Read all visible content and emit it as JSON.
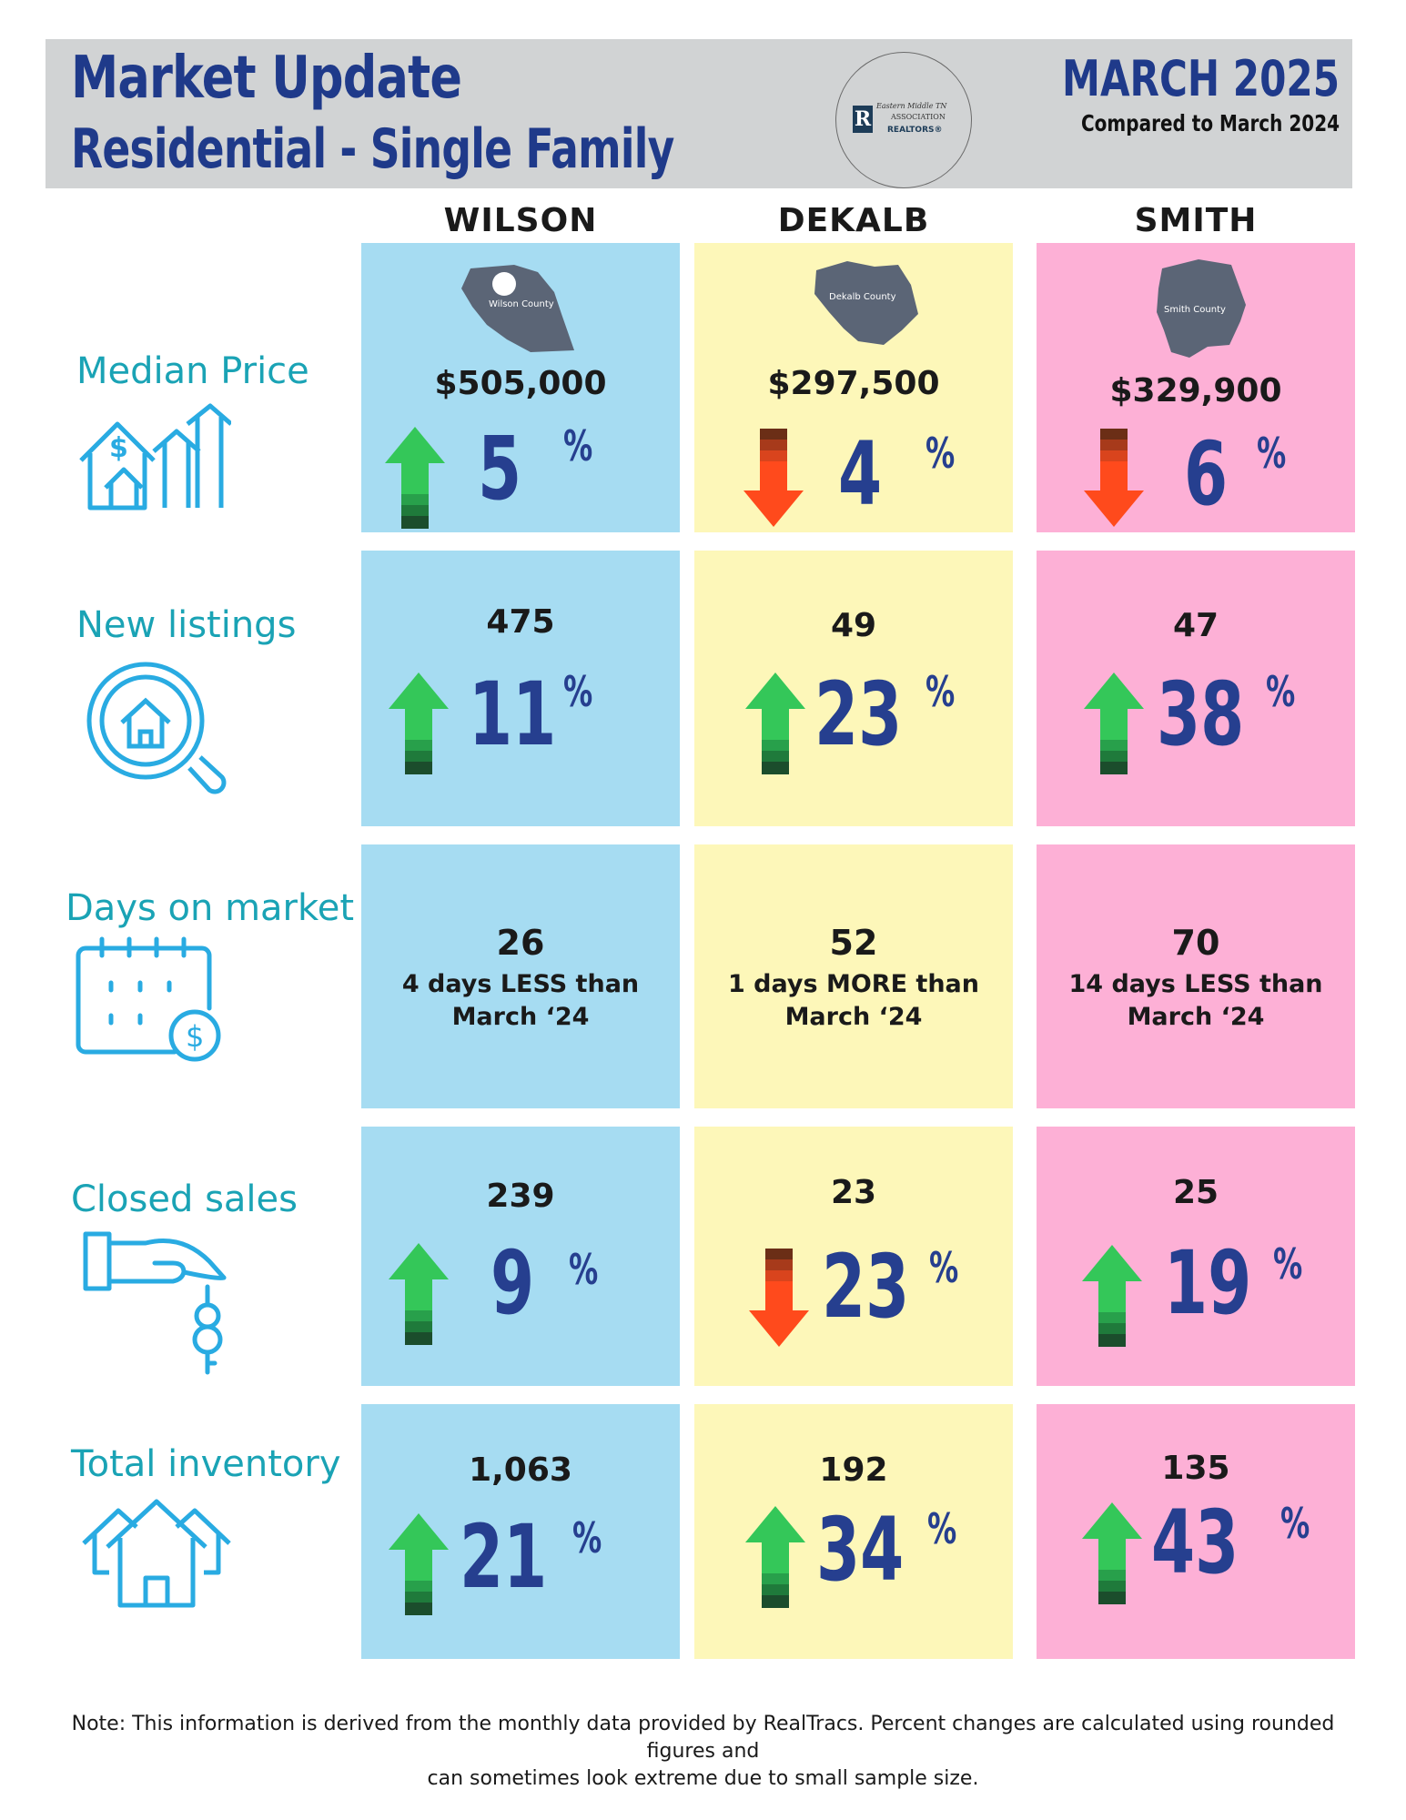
{
  "header": {
    "title": "Market Update",
    "subtitle": "Residential - Single Family",
    "month": "MARCH 2025",
    "compared": "Compared to March 2024",
    "logo": {
      "text1": "Eastern Middle TN",
      "text2": "ASSOCIATION",
      "text3": "REALTORS®"
    }
  },
  "counties": [
    {
      "name": "WILSON",
      "map_label": "Wilson County",
      "color": "#a6dcf2"
    },
    {
      "name": "DEKALB",
      "map_label": "Dekalb County",
      "color": "#fdf7b9"
    },
    {
      "name": "SMITH",
      "map_label": "Smith County",
      "color": "#fdb0d6"
    }
  ],
  "metrics": {
    "median_price": {
      "label": "Median Price",
      "icon": "house-price-growth-icon",
      "values": [
        {
          "value": "$505,000",
          "change": "5",
          "direction": "up"
        },
        {
          "value": "$297,500",
          "change": "4",
          "direction": "down"
        },
        {
          "value": "$329,900",
          "change": "6",
          "direction": "down"
        }
      ]
    },
    "new_listings": {
      "label": "New listings",
      "icon": "house-search-icon",
      "values": [
        {
          "value": "475",
          "change": "11",
          "direction": "up"
        },
        {
          "value": "49",
          "change": "23",
          "direction": "up"
        },
        {
          "value": "47",
          "change": "38",
          "direction": "up"
        }
      ]
    },
    "days_on_market": {
      "label": "Days on market",
      "icon": "calendar-dollar-icon",
      "values": [
        {
          "value": "26",
          "line1": "4 days LESS than",
          "line2": "March ‘24"
        },
        {
          "value": "52",
          "line1": "1 days MORE than",
          "line2": "March ‘24"
        },
        {
          "value": "70",
          "line1": "14 days LESS than",
          "line2": "March ‘24"
        }
      ]
    },
    "closed_sales": {
      "label": "Closed sales",
      "icon": "hand-key-icon",
      "values": [
        {
          "value": "239",
          "change": "9",
          "direction": "up"
        },
        {
          "value": "23",
          "change": "23",
          "direction": "down"
        },
        {
          "value": "25",
          "change": "19",
          "direction": "up"
        }
      ]
    },
    "total_inventory": {
      "label": "Total inventory",
      "icon": "houses-icon",
      "values": [
        {
          "value": "1,063",
          "change": "21",
          "direction": "up"
        },
        {
          "value": "192",
          "change": "34",
          "direction": "up"
        },
        {
          "value": "135",
          "change": "43",
          "direction": "up"
        }
      ]
    }
  },
  "percent_sign": "%",
  "footer": {
    "line1": "Note: This information is derived from the monthly data provided by RealTracs. Percent changes are calculated using rounded figures and",
    "line2": "can sometimes look extreme due to small sample size."
  },
  "colors": {
    "title": "#1f3a8a",
    "label": "#1aa3b5",
    "up_arrow": "#34c759",
    "down_arrow": "#ff4a1c"
  }
}
